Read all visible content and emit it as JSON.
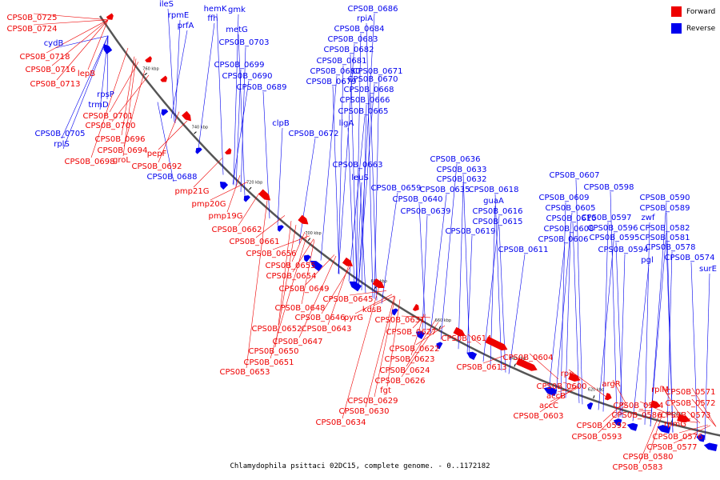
{
  "legend": [
    {
      "label": "Forward",
      "color": "#ee0000"
    },
    {
      "label": "Reverse",
      "color": "#0000ee"
    }
  ],
  "caption": "Chlamydophila psittaci 02DC15, complete genome. - 0..1172182",
  "colors": {
    "forward": "#ee0000",
    "reverse": "#0000ee",
    "backbone": "#777777"
  },
  "ticks": [
    "760 kbp",
    "740 kbp",
    "720 kbp",
    "700 kbp",
    "680 kbp",
    "660 kbp",
    "640 kbp",
    "620 kbp",
    "600 kbp"
  ],
  "reverse_genes": [
    "ileS",
    "rpmE",
    "prfA",
    "hemK",
    "gmk",
    "ffh",
    "metG",
    "CPS0B_0703",
    "CPS0B_0686",
    "rpiA",
    "CPS0B_0684",
    "CPS0B_0683",
    "CPS0B_0682",
    "CPS0B_0681",
    "CPS0B_0680",
    "CPS0B_0679",
    "CPS0B_0699",
    "CPS0B_0690",
    "CPS0B_0689",
    "CPS0B_0671",
    "CPS0B_0670",
    "CPS0B_0668",
    "CPS0B_0666",
    "CPS0B_0665",
    "ligA",
    "clpB",
    "CPS0B_0672",
    "cydB",
    "rpsP",
    "trmD",
    "CPS0B_0705",
    "rplS",
    "CPS0B_0688",
    "CPS0B_0663",
    "leuS",
    "CPS0B_0659",
    "CPS0B_0640",
    "CPS0B_0639",
    "CPS0B_0636",
    "CPS0B_0633",
    "CPS0B_0632",
    "CPS0B_0635",
    "CPS0B_0618",
    "guaA",
    "CPS0B_0616",
    "CPS0B_0615",
    "CPS0B_0619",
    "CPS0B_0611",
    "CPS0B_0607",
    "CPS0B_0609",
    "CPS0B_0605",
    "CPS0B_0610",
    "CPS0B_0608",
    "CPS0B_0606",
    "CPS0B_0598",
    "CPS0B_0597",
    "CPS0B_0596",
    "CPS0B_0595",
    "CPS0B_0594",
    "CPS0B_0590",
    "CPS0B_0589",
    "zwf",
    "CPS0B_0582",
    "CPS0B_0581",
    "CPS0B_0578",
    "pgl",
    "CPS0B_0574",
    "surE"
  ],
  "forward_genes": [
    "CPS0B_0725",
    "CPS0B_0724",
    "CPS0B_0718",
    "CPS0B_0716",
    "lepB",
    "CPS0B_0713",
    "CPS0B_0701",
    "CPS0B_0700",
    "CPS0B_0696",
    "CPS0B_0694",
    "pepF",
    "CPS0B_0698",
    "groL",
    "CPS0B_0692",
    "pmp21G",
    "pmp20G",
    "pmp19G",
    "CPS0B_0662",
    "CPS0B_0661",
    "CPS0B_0656",
    "CPS0B_0655",
    "CPS0B_0654",
    "CPS0B_0649",
    "CPS0B_0645",
    "CPS0B_0648",
    "kdsB",
    "CPS0B_0646",
    "pyrG",
    "CPS0B_0652",
    "CPS0B_0643",
    "CPS0B_0631",
    "CPS0B_0647",
    "CPS0B_0627",
    "CPS0B_0650",
    "CPS0B_0622",
    "CPS0B_0651",
    "CPS0B_0623",
    "CPS0B_0653",
    "CPS0B_0624",
    "CPS0B_0626",
    "fgt",
    "CPS0B_0629",
    "CPS0B_0630",
    "CPS0B_0634",
    "CPS0B_0614",
    "CPS0B_0613",
    "CPS0B_0604",
    "rpe",
    "CPS0B_0600",
    "accB",
    "accC",
    "CPS0B_0603",
    "argR",
    "CPS0B_0592",
    "CPS0B_0593",
    "CPS0B_0584",
    "CPS0B_0586",
    "rplM",
    "CPS0B_0571",
    "CPS0B_0572",
    "CPS0B_0573",
    "rpmG",
    "CPS0B_0576",
    "CPS0B_0577",
    "CPS0B_0580",
    "CPS0B_0583"
  ]
}
